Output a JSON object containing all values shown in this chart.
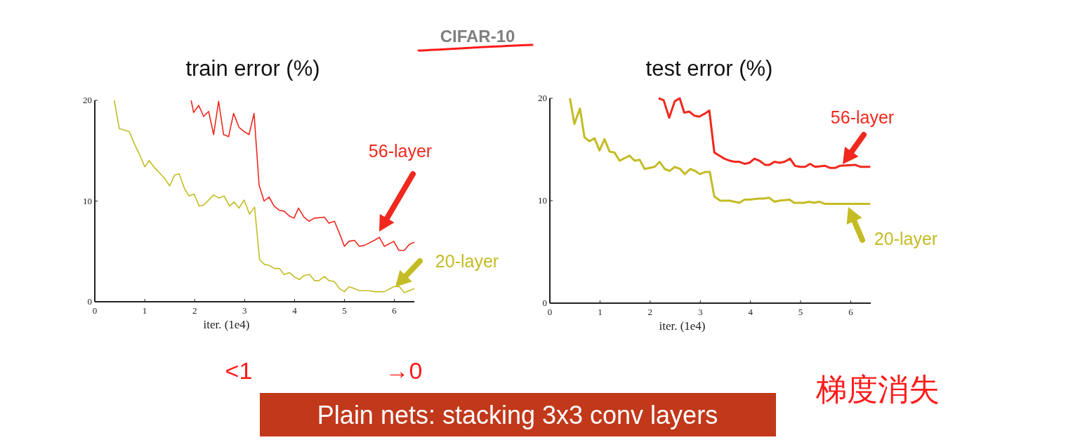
{
  "chart_data": [
    {
      "type": "line",
      "title": "train error (%)",
      "xlabel": "iter. (1e4)",
      "xlim": [
        0,
        6.4
      ],
      "ylim": [
        0,
        20
      ],
      "xticks": [
        0,
        1,
        2,
        3,
        4,
        5,
        6
      ],
      "yticks": [
        0,
        10,
        20
      ],
      "annotations": [
        "CIFAR-10",
        "<1",
        "→0",
        "梯度消失",
        "Plain nets: stacking 3x3 conv layers"
      ],
      "series": [
        {
          "name": "56-layer",
          "color": "#f0281e",
          "x": [
            1.93,
            1.98,
            2.08,
            2.18,
            2.28,
            2.38,
            2.48,
            2.58,
            2.68,
            2.78,
            2.89,
            2.99,
            3.09,
            3.19,
            3.29,
            3.39,
            3.49,
            3.59,
            3.69,
            3.79,
            3.9,
            3.99,
            4.08,
            4.19,
            4.29,
            4.4,
            4.6,
            4.69,
            4.8,
            4.9,
            5.0,
            5.09,
            5.2,
            5.3,
            5.4,
            5.6,
            5.7,
            5.8,
            5.99,
            6.09,
            6.2,
            6.3,
            6.4
          ],
          "values": [
            20,
            18.8,
            19.5,
            18.4,
            18.9,
            16.6,
            19.9,
            16.6,
            16.4,
            18.7,
            17.3,
            16.9,
            16.6,
            18.7,
            11.6,
            10.0,
            10.4,
            9.5,
            9.1,
            9.0,
            8.5,
            8.3,
            9.3,
            8.4,
            8.0,
            8.3,
            8.4,
            7.8,
            8.0,
            6.8,
            5.5,
            6.0,
            6.1,
            5.5,
            5.6,
            6.1,
            6.4,
            5.5,
            6.0,
            5.1,
            5.1,
            5.7,
            5.9
          ]
        },
        {
          "name": "20-layer",
          "color": "#c4bc24",
          "x": [
            0.39,
            0.49,
            0.69,
            0.8,
            0.89,
            1.0,
            1.09,
            1.2,
            1.39,
            1.5,
            1.6,
            1.69,
            1.8,
            1.89,
            1.99,
            2.09,
            2.18,
            2.38,
            2.49,
            2.59,
            2.7,
            2.79,
            2.89,
            2.99,
            3.1,
            3.2,
            3.3,
            3.4,
            3.5,
            3.6,
            3.7,
            3.79,
            3.9,
            3.99,
            4.1,
            4.19,
            4.3,
            4.4,
            4.49,
            4.6,
            4.69,
            4.8,
            4.9,
            5.0,
            5.09,
            5.2,
            5.3,
            5.49,
            5.6,
            5.8,
            5.99,
            6.1,
            6.2,
            6.4
          ],
          "values": [
            20,
            17.2,
            16.9,
            15.6,
            14.7,
            13.4,
            14.0,
            13.3,
            12.3,
            11.5,
            12.6,
            12.7,
            11.2,
            10.5,
            10.7,
            9.5,
            9.6,
            10.6,
            10.3,
            10.5,
            9.5,
            9.9,
            9.3,
            10.1,
            8.7,
            9.4,
            4.2,
            3.7,
            3.6,
            3.3,
            3.3,
            2.7,
            2.9,
            2.5,
            2.2,
            2.6,
            2.7,
            2.1,
            2.1,
            2.5,
            2.1,
            2.0,
            1.3,
            1.0,
            1.5,
            1.3,
            1.1,
            1.1,
            1.0,
            1.0,
            1.5,
            1.5,
            0.9,
            1.3
          ]
        }
      ]
    },
    {
      "type": "line",
      "title": "test error (%)",
      "xlabel": "iter. (1e4)",
      "xlim": [
        0,
        6.4
      ],
      "ylim": [
        0,
        20
      ],
      "xticks": [
        0,
        1,
        2,
        3,
        4,
        5,
        6
      ],
      "yticks": [
        0,
        10,
        20
      ],
      "series": [
        {
          "name": "56-layer",
          "color": "#f0281e",
          "x": [
            2.17,
            2.27,
            2.38,
            2.49,
            2.59,
            2.68,
            2.78,
            2.88,
            2.98,
            3.09,
            3.18,
            3.28,
            3.38,
            3.48,
            3.59,
            3.68,
            3.78,
            3.88,
            3.98,
            4.08,
            4.18,
            4.29,
            4.38,
            4.48,
            4.58,
            4.68,
            4.79,
            4.89,
            4.99,
            5.09,
            5.19,
            5.29,
            5.49,
            5.59,
            5.69,
            5.78,
            6.09,
            6.2,
            6.39
          ],
          "values": [
            20,
            19.8,
            18.1,
            19.7,
            20.0,
            18.6,
            18.7,
            18.3,
            18.2,
            18.5,
            18.8,
            14.7,
            14.4,
            14.1,
            13.9,
            13.8,
            13.8,
            13.6,
            13.7,
            14.1,
            13.9,
            13.5,
            13.5,
            13.8,
            13.7,
            13.8,
            14.1,
            13.4,
            13.3,
            13.3,
            13.6,
            13.3,
            13.4,
            13.2,
            13.2,
            13.4,
            13.5,
            13.3,
            13.3
          ]
        },
        {
          "name": "20-layer",
          "color": "#c4bc24",
          "x": [
            0.4,
            0.49,
            0.6,
            0.69,
            0.79,
            0.89,
            0.99,
            1.09,
            1.19,
            1.29,
            1.39,
            1.59,
            1.69,
            1.79,
            1.89,
            2.09,
            2.19,
            2.29,
            2.39,
            2.49,
            2.6,
            2.69,
            2.8,
            2.9,
            2.99,
            3.1,
            3.19,
            3.28,
            3.4,
            3.59,
            3.78,
            3.88,
            3.97,
            4.17,
            4.27,
            4.37,
            4.48,
            4.57,
            4.78,
            4.87,
            5.07,
            5.17,
            5.27,
            5.37,
            5.48,
            5.87,
            6.39
          ],
          "values": [
            20,
            17.5,
            19.0,
            16.2,
            15.8,
            16.1,
            14.9,
            16.0,
            14.8,
            14.7,
            13.9,
            14.4,
            13.9,
            14.0,
            13.1,
            13.3,
            13.8,
            13.1,
            12.9,
            13.3,
            13.1,
            12.6,
            13.1,
            12.9,
            12.6,
            12.8,
            12.8,
            10.4,
            10.0,
            10.0,
            9.8,
            10.1,
            10.1,
            10.2,
            10.2,
            10.3,
            9.9,
            10.0,
            10.1,
            9.8,
            9.8,
            9.9,
            9.8,
            9.9,
            9.7,
            9.7,
            9.7
          ]
        }
      ]
    }
  ]
}
